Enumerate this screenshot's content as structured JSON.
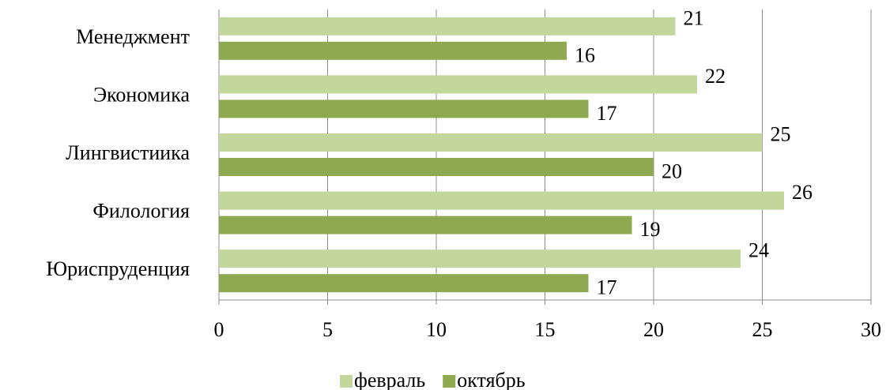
{
  "chart_data": {
    "type": "bar",
    "orientation": "horizontal",
    "categories": [
      "Менеджмент",
      "Экономика",
      "Лингвистиика",
      "Филология",
      "Юриспруденция"
    ],
    "series": [
      {
        "name": "февраль",
        "color": "#c3d69b",
        "values": [
          21,
          22,
          25,
          26,
          24
        ]
      },
      {
        "name": "октябрь",
        "color": "#8ea94f",
        "values": [
          16,
          17,
          20,
          19,
          17
        ]
      }
    ],
    "xlim": [
      0,
      30
    ],
    "xticks": [
      0,
      5,
      10,
      15,
      20,
      25,
      30
    ],
    "grid": true,
    "legend": "bottom"
  }
}
